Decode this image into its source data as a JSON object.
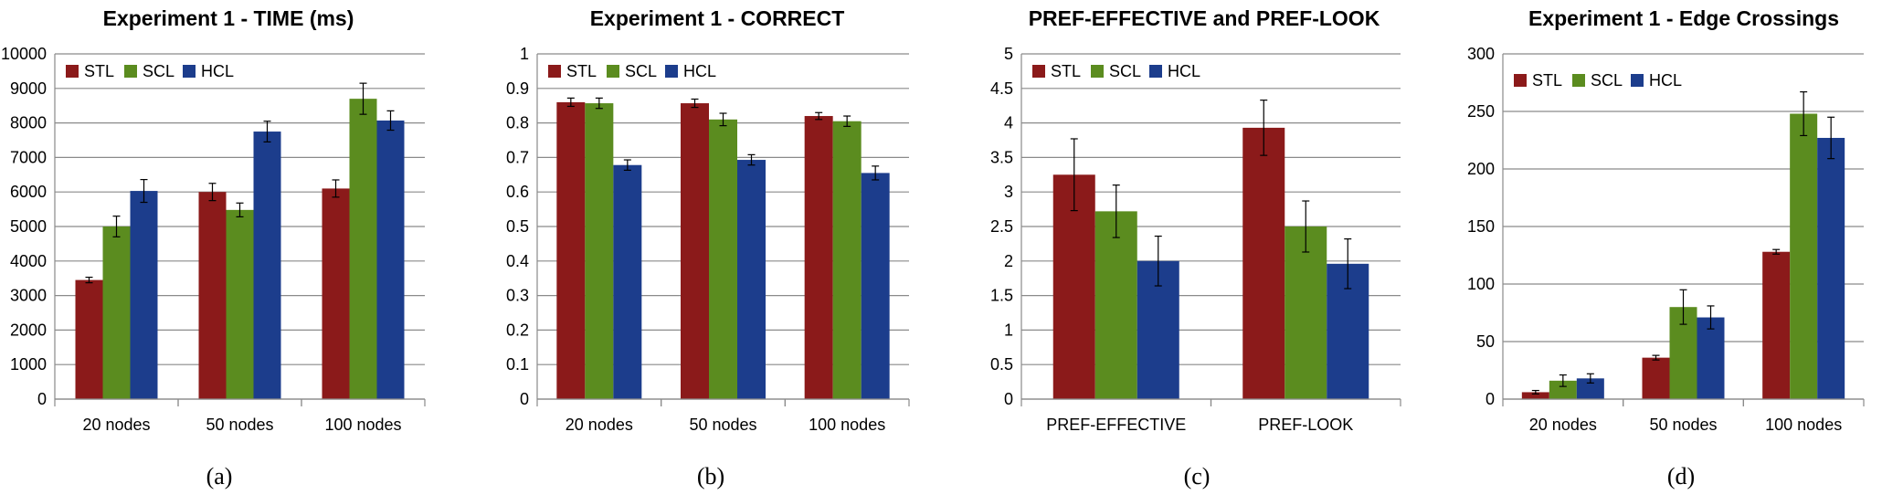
{
  "chart_data": [
    {
      "type": "bar",
      "id": "a",
      "title": "Experiment 1 - TIME (ms)",
      "caption": "(a)",
      "categories": [
        "20 nodes",
        "50 nodes",
        "100 nodes"
      ],
      "ylim": [
        0,
        10000
      ],
      "yticks": [
        "0",
        "1000",
        "2000",
        "3000",
        "4000",
        "5000",
        "6000",
        "7000",
        "8000",
        "9000",
        "10000"
      ],
      "grid": true,
      "legend_position": "top-left",
      "series": [
        {
          "name": "STL",
          "color": "#8b1a1a",
          "values": [
            3450,
            6000,
            6100
          ],
          "errors": [
            80,
            250,
            250
          ]
        },
        {
          "name": "SCL",
          "color": "#5b8c1f",
          "values": [
            5000,
            5480,
            8700
          ],
          "errors": [
            300,
            200,
            450
          ]
        },
        {
          "name": "HCL",
          "color": "#1c3d8c",
          "values": [
            6030,
            7750,
            8070
          ],
          "errors": [
            330,
            300,
            280
          ]
        }
      ]
    },
    {
      "type": "bar",
      "id": "b",
      "title": "Experiment 1 - CORRECT",
      "caption": "(b)",
      "categories": [
        "20 nodes",
        "50 nodes",
        "100 nodes"
      ],
      "ylim": [
        0,
        1
      ],
      "yticks": [
        "0",
        "0.1",
        "0.2",
        "0.3",
        "0.4",
        "0.5",
        "0.6",
        "0.7",
        "0.8",
        "0.9",
        "1"
      ],
      "grid": true,
      "legend_position": "top-left",
      "series": [
        {
          "name": "STL",
          "color": "#8b1a1a",
          "values": [
            0.86,
            0.857,
            0.82
          ],
          "errors": [
            0.012,
            0.012,
            0.01
          ]
        },
        {
          "name": "SCL",
          "color": "#5b8c1f",
          "values": [
            0.857,
            0.81,
            0.805
          ],
          "errors": [
            0.015,
            0.018,
            0.015
          ]
        },
        {
          "name": "HCL",
          "color": "#1c3d8c",
          "values": [
            0.678,
            0.693,
            0.655
          ],
          "errors": [
            0.015,
            0.015,
            0.02
          ]
        }
      ]
    },
    {
      "type": "bar",
      "id": "c",
      "title": "PREF-EFFECTIVE and PREF-LOOK",
      "caption": "(c)",
      "categories": [
        "PREF-EFFECTIVE",
        "PREF-LOOK"
      ],
      "ylim": [
        0,
        5
      ],
      "yticks": [
        "0",
        "0.5",
        "1",
        "1.5",
        "2",
        "2.5",
        "3",
        "3.5",
        "4",
        "4.5",
        "5"
      ],
      "grid": true,
      "legend_position": "top-left",
      "series": [
        {
          "name": "STL",
          "color": "#8b1a1a",
          "values": [
            3.25,
            3.93
          ],
          "errors": [
            0.52,
            0.4
          ]
        },
        {
          "name": "SCL",
          "color": "#5b8c1f",
          "values": [
            2.72,
            2.5
          ],
          "errors": [
            0.38,
            0.37
          ]
        },
        {
          "name": "HCL",
          "color": "#1c3d8c",
          "values": [
            2.0,
            1.96
          ],
          "errors": [
            0.36,
            0.36
          ]
        }
      ]
    },
    {
      "type": "bar",
      "id": "d",
      "title": "Experiment 1 - Edge Crossings",
      "caption": "(d)",
      "categories": [
        "20 nodes",
        "50 nodes",
        "100 nodes"
      ],
      "ylim": [
        0,
        300
      ],
      "yticks": [
        "0",
        "50",
        "100",
        "150",
        "200",
        "250",
        "300"
      ],
      "grid": true,
      "legend_position": "top-left",
      "series": [
        {
          "name": "STL",
          "color": "#8b1a1a",
          "values": [
            6,
            36,
            128
          ],
          "errors": [
            1.5,
            2,
            2
          ]
        },
        {
          "name": "SCL",
          "color": "#5b8c1f",
          "values": [
            16,
            80,
            248
          ],
          "errors": [
            5,
            15,
            19
          ]
        },
        {
          "name": "HCL",
          "color": "#1c3d8c",
          "values": [
            18,
            71,
            227
          ],
          "errors": [
            4,
            10,
            18
          ]
        }
      ]
    }
  ]
}
